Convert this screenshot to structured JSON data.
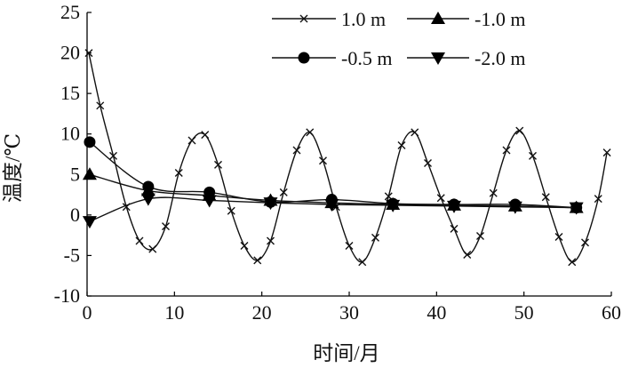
{
  "chart_data": {
    "type": "line",
    "xlabel": "时间/月",
    "ylabel": "温度/℃",
    "xlim": [
      0,
      60
    ],
    "ylim": [
      -10,
      25
    ],
    "x_ticks": [
      "0",
      "10",
      "20",
      "30",
      "40",
      "50",
      "60"
    ],
    "y_ticks": [
      "-10",
      "-5",
      "0",
      "5",
      "10",
      "15",
      "20",
      "25"
    ],
    "grid": false,
    "legend_position": "top-right",
    "series": [
      {
        "name": "1.0 m",
        "marker": "cross",
        "x": [
          0.2,
          1.5,
          3,
          4.5,
          6,
          7.5,
          9,
          10.5,
          12,
          13.5,
          15,
          16.5,
          18,
          19.5,
          21,
          22.5,
          24,
          25.5,
          27,
          28.5,
          30,
          31.5,
          33,
          34.5,
          36,
          37.5,
          39,
          40.5,
          42,
          43.5,
          45,
          46.5,
          48,
          49.5,
          51,
          52.5,
          54,
          55.5,
          57,
          58.5,
          59.5
        ],
        "values": [
          20,
          13.5,
          7.3,
          1.0,
          -3.2,
          -4.2,
          -1.4,
          5.2,
          9.2,
          9.9,
          6.2,
          0.5,
          -3.8,
          -5.6,
          -3.2,
          2.8,
          8.0,
          10.2,
          6.7,
          1.0,
          -3.8,
          -5.8,
          -2.8,
          2.3,
          8.6,
          10.2,
          6.4,
          2.1,
          -1.7,
          -4.9,
          -2.6,
          2.7,
          8.0,
          10.4,
          7.3,
          2.2,
          -2.7,
          -5.8,
          -3.4,
          2.0,
          7.7
        ]
      },
      {
        "name": "-0.5 m",
        "marker": "circle",
        "x": [
          0.3,
          7,
          14,
          21,
          28,
          35,
          42,
          49,
          56
        ],
        "values": [
          9.0,
          3.5,
          2.8,
          1.6,
          1.9,
          1.4,
          1.3,
          1.3,
          0.9
        ]
      },
      {
        "name": "-1.0 m",
        "marker": "triangle-up",
        "x": [
          0.3,
          7,
          14,
          21,
          28,
          35,
          42,
          49,
          56
        ],
        "values": [
          5.0,
          3.0,
          2.4,
          1.8,
          1.5,
          1.3,
          1.2,
          1.1,
          0.9
        ]
      },
      {
        "name": "-2.0 m",
        "marker": "triangle-down",
        "x": [
          0.3,
          7,
          14,
          21,
          28,
          35,
          42,
          49,
          56
        ],
        "values": [
          -0.8,
          2.0,
          1.8,
          1.5,
          1.3,
          1.2,
          1.1,
          1.0,
          0.9
        ]
      }
    ]
  }
}
